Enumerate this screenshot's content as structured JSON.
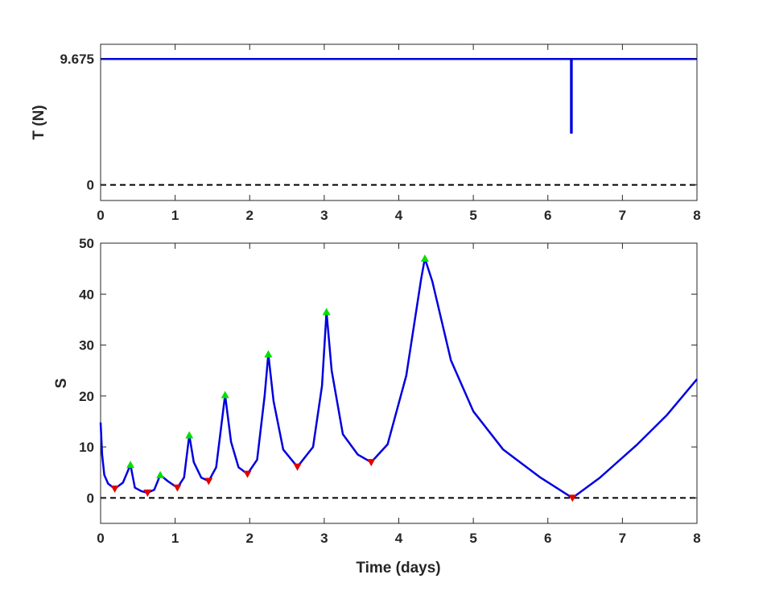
{
  "chart_data": [
    {
      "type": "line",
      "ylabel": "T (N)",
      "xlabel": "",
      "xlim": [
        0,
        8
      ],
      "ylim": [
        -1.2,
        10.8
      ],
      "x_ticks": [
        "0",
        "1",
        "2",
        "3",
        "4",
        "5",
        "6",
        "7",
        "8"
      ],
      "y_ticks": [
        "0",
        "9.675"
      ],
      "series": [
        {
          "color": "#0000e0",
          "x": [
            0,
            6.31,
            6.31,
            6.32,
            6.32,
            8
          ],
          "y": [
            9.675,
            9.675,
            4.0,
            4.0,
            9.675,
            9.675
          ]
        }
      ],
      "reference_line": {
        "y": 0,
        "style": "dashed",
        "color": "#000000"
      },
      "grid": false
    },
    {
      "type": "line",
      "ylabel": "S",
      "xlabel": "Time (days)",
      "xlim": [
        0,
        8
      ],
      "ylim": [
        -5,
        50
      ],
      "x_ticks": [
        "0",
        "1",
        "2",
        "3",
        "4",
        "5",
        "6",
        "7",
        "8"
      ],
      "y_ticks": [
        "0",
        "10",
        "20",
        "30",
        "40",
        "50"
      ],
      "series": [
        {
          "color": "#0000e0",
          "x": [
            0.0,
            0.02,
            0.05,
            0.1,
            0.19,
            0.3,
            0.4,
            0.46,
            0.55,
            0.63,
            0.72,
            0.8,
            0.9,
            1.03,
            1.12,
            1.19,
            1.25,
            1.35,
            1.45,
            1.55,
            1.67,
            1.75,
            1.85,
            1.97,
            2.1,
            2.2,
            2.25,
            2.32,
            2.45,
            2.64,
            2.85,
            2.97,
            3.03,
            3.1,
            3.25,
            3.45,
            3.63,
            3.85,
            4.1,
            4.3,
            4.35,
            4.45,
            4.7,
            5.0,
            5.4,
            5.9,
            6.33,
            6.7,
            7.2,
            7.6,
            8.0
          ],
          "y": [
            14.8,
            8.5,
            4.5,
            2.8,
            1.8,
            3.0,
            6.5,
            2.0,
            1.3,
            1.0,
            1.6,
            4.5,
            3.3,
            2.0,
            4.0,
            12.3,
            7.0,
            4.0,
            3.3,
            6.0,
            20.2,
            11.0,
            6.0,
            4.7,
            7.5,
            20.0,
            28.2,
            19.0,
            9.5,
            6.1,
            10.0,
            22.0,
            36.5,
            25.0,
            12.5,
            8.5,
            7.0,
            10.5,
            24.0,
            43.0,
            47.0,
            42.5,
            27.0,
            17.0,
            9.5,
            4.0,
            0.0,
            4.0,
            10.5,
            16.3,
            23.3
          ]
        }
      ],
      "peaks": {
        "color": "#00e000",
        "x": [
          0.4,
          0.8,
          1.19,
          1.67,
          2.25,
          3.03,
          4.35
        ],
        "y": [
          6.5,
          4.5,
          12.3,
          20.2,
          28.2,
          36.5,
          47.0
        ]
      },
      "troughs": {
        "color": "#e00000",
        "x": [
          0.19,
          0.63,
          1.03,
          1.45,
          1.97,
          2.64,
          3.63,
          6.33
        ],
        "y": [
          1.8,
          1.0,
          2.0,
          3.3,
          4.7,
          6.1,
          7.0,
          0.0
        ]
      },
      "reference_line": {
        "y": 0,
        "style": "dashed",
        "color": "#000000"
      },
      "grid": false
    }
  ]
}
